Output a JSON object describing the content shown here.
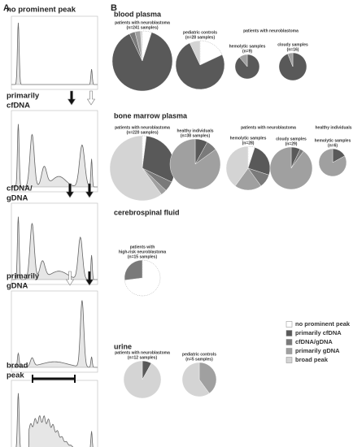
{
  "legend": [
    {
      "name": "no prominent peak",
      "color": "#ffffff"
    },
    {
      "name": "primarily cfDNA",
      "color": "#595959"
    },
    {
      "name": "cfDNA/gDNA",
      "color": "#7a7a7a"
    },
    {
      "name": "primarily gDNA",
      "color": "#a0a0a0"
    },
    {
      "name": "broad peak",
      "color": "#d4d4d4"
    }
  ],
  "panel_a": {
    "label": "A",
    "traces": [
      {
        "label": [
          "no prominent peak"
        ]
      },
      {
        "label": [
          "primarily",
          "cfDNA"
        ]
      },
      {
        "label": [
          "cfDNA/",
          "gDNA"
        ]
      },
      {
        "label": [
          "primarily",
          "gDNA"
        ]
      },
      {
        "label": [
          "broad",
          "peak"
        ]
      }
    ]
  },
  "panel_b": {
    "label": "B",
    "sections": [
      {
        "title": "blood plasma",
        "groups": [
          "patients with neuroblastoma"
        ],
        "pies": [
          {
            "label": [
              "patients with neuroblastoma",
              "(n=241 samples)"
            ],
            "values": [
              5,
              88,
              3,
              3,
              1
            ]
          },
          {
            "label": [
              "pediatric controls",
              "(n=28 samples)"
            ],
            "values": [
              18,
              75,
              0,
              0,
              7
            ]
          },
          {
            "label": [
              "hemolytic samples",
              "(n=9)"
            ],
            "values": [
              0,
              89,
              0,
              11,
              0
            ]
          },
          {
            "label": [
              "cloudy samples",
              "(n=16)"
            ],
            "values": [
              0,
              94,
              0,
              6,
              0
            ]
          }
        ]
      },
      {
        "title": "bone marrow plasma",
        "groups": [
          "patients with neuroblastoma",
          "healthy individuals"
        ],
        "pies": [
          {
            "label": [
              "patients with neuroblastoma",
              "(n=220 samples)"
            ],
            "values": [
              2,
              30,
              5,
              3,
              60
            ]
          },
          {
            "label": [
              "healthy individuals",
              "(n=38 samples)"
            ],
            "values": [
              0,
              8,
              7,
              85,
              0
            ]
          },
          {
            "label": [
              "hemolytic samples",
              "(n=28)"
            ],
            "values": [
              5,
              25,
              10,
              20,
              40
            ]
          },
          {
            "label": [
              "cloudy samples",
              "(n=29)"
            ],
            "values": [
              0,
              7,
              3,
              90,
              0
            ]
          },
          {
            "label": [
              "hemolytic samples",
              "(n=6)"
            ],
            "values": [
              0,
              17,
              0,
              83,
              0
            ]
          }
        ]
      },
      {
        "title": "cerebrospinal fluid",
        "groups": [],
        "pies": [
          {
            "label": [
              "patients with",
              "high-risk neuroblastoma",
              "(n=15 samples)"
            ],
            "values": [
              73,
              0,
              27,
              0,
              0
            ]
          }
        ]
      },
      {
        "title": "urine",
        "groups": [],
        "pies": [
          {
            "label": [
              "patients with neuroblastoma",
              "(n=12 samples)"
            ],
            "values": [
              0,
              8,
              0,
              0,
              92
            ]
          },
          {
            "label": [
              "pediatric controls",
              "(n=5 samples)"
            ],
            "values": [
              0,
              0,
              0,
              40,
              60
            ]
          }
        ]
      }
    ]
  }
}
